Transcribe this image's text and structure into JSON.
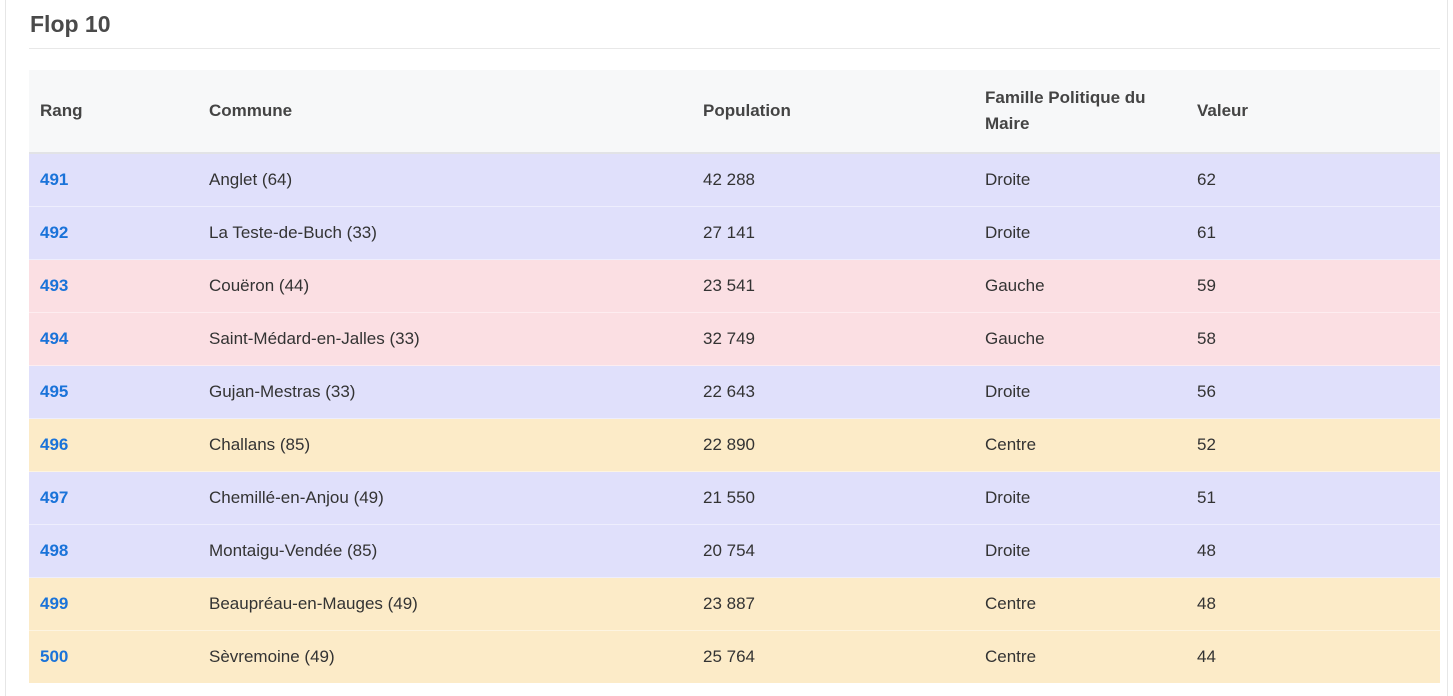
{
  "section": {
    "title": "Flop 10"
  },
  "table": {
    "headers": {
      "rang": "Rang",
      "commune": "Commune",
      "population": "Population",
      "famille": "Famille Politique du Maire",
      "valeur": "Valeur"
    },
    "rows": [
      {
        "rang": "491",
        "commune": "Anglet (64)",
        "population": "42 288",
        "famille": "Droite",
        "valeur": "62"
      },
      {
        "rang": "492",
        "commune": "La Teste-de-Buch (33)",
        "population": "27 141",
        "famille": "Droite",
        "valeur": "61"
      },
      {
        "rang": "493",
        "commune": "Couëron (44)",
        "population": "23 541",
        "famille": "Gauche",
        "valeur": "59"
      },
      {
        "rang": "494",
        "commune": "Saint-Médard-en-Jalles (33)",
        "population": "32 749",
        "famille": "Gauche",
        "valeur": "58"
      },
      {
        "rang": "495",
        "commune": "Gujan-Mestras (33)",
        "population": "22 643",
        "famille": "Droite",
        "valeur": "56"
      },
      {
        "rang": "496",
        "commune": "Challans (85)",
        "population": "22 890",
        "famille": "Centre",
        "valeur": "52"
      },
      {
        "rang": "497",
        "commune": "Chemillé-en-Anjou (49)",
        "population": "21 550",
        "famille": "Droite",
        "valeur": "51"
      },
      {
        "rang": "498",
        "commune": "Montaigu-Vendée (85)",
        "population": "20 754",
        "famille": "Droite",
        "valeur": "48"
      },
      {
        "rang": "499",
        "commune": "Beaupréau-en-Mauges (49)",
        "population": "23 887",
        "famille": "Centre",
        "valeur": "48"
      },
      {
        "rang": "500",
        "commune": "Sèvremoine (49)",
        "population": "25 764",
        "famille": "Centre",
        "valeur": "44"
      }
    ]
  },
  "colors": {
    "rank_link": "#1a73d9",
    "droite_row": "#e0e0fb",
    "gauche_row": "#fbdfe3",
    "centre_row": "#fcebc8",
    "header_bg": "#f7f8f9"
  }
}
